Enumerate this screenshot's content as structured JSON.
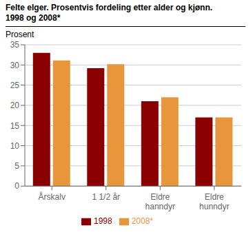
{
  "chart_data": {
    "type": "bar",
    "title": "Felte elger. Prosentvis fordeling etter alder og kjønn.",
    "subtitle": "1998 og 2008*",
    "ylabel": "Prosent",
    "categories": [
      "Årskalv",
      "1 1/2 år",
      "Eldre\nhanndyr",
      "Eldre\nhunndyr"
    ],
    "series": [
      {
        "name": "1998",
        "color": "#8B0000",
        "values": [
          33.0,
          29.2,
          21.0,
          17.0
        ]
      },
      {
        "name": "2008*",
        "color": "#E8963C",
        "values": [
          31.1,
          30.2,
          22.0,
          17.0
        ]
      }
    ],
    "ylim": [
      0,
      35
    ],
    "yticks": [
      0,
      5,
      10,
      15,
      20,
      25,
      30,
      35
    ],
    "grid": true,
    "legend": "bottom"
  }
}
